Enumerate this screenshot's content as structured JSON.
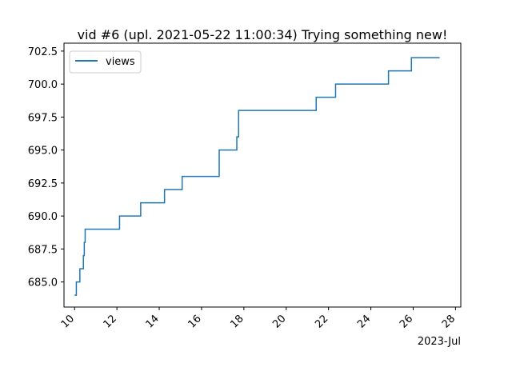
{
  "chart_data": {
    "type": "line",
    "title": "vid #6 (upl. 2021-05-22 11:00:34) Trying something new!",
    "xlabel": "",
    "ylabel": "",
    "x_offset_label": "2023-Jul",
    "x_ticks": [
      {
        "value": "2023-07-10",
        "label": "10"
      },
      {
        "value": "2023-07-12",
        "label": "12"
      },
      {
        "value": "2023-07-14",
        "label": "14"
      },
      {
        "value": "2023-07-16",
        "label": "16"
      },
      {
        "value": "2023-07-18",
        "label": "18"
      },
      {
        "value": "2023-07-20",
        "label": "20"
      },
      {
        "value": "2023-07-22",
        "label": "22"
      },
      {
        "value": "2023-07-24",
        "label": "24"
      },
      {
        "value": "2023-07-26",
        "label": "26"
      },
      {
        "value": "2023-07-28",
        "label": "28"
      }
    ],
    "y_ticks": [
      685.0,
      687.5,
      690.0,
      692.5,
      695.0,
      697.5,
      700.0,
      702.5
    ],
    "y_tick_labels": [
      "685.0",
      "687.5",
      "690.0",
      "692.5",
      "695.0",
      "697.5",
      "700.0",
      "702.5"
    ],
    "xlim": [
      "2023-07-09T12:00",
      "2023-07-28T06:00"
    ],
    "ylim": [
      683.1,
      703.1
    ],
    "grid": false,
    "legend": {
      "position": "top-left",
      "entries": [
        "views"
      ]
    },
    "series": [
      {
        "name": "views",
        "color": "#1f77b4",
        "step": "post",
        "x": [
          "2023-07-10T00:00",
          "2023-07-10T02:00",
          "2023-07-10T06:00",
          "2023-07-10T10:00",
          "2023-07-10T11:00",
          "2023-07-10T12:00",
          "2023-07-10T13:00",
          "2023-07-10T17:00",
          "2023-07-12T03:00",
          "2023-07-13T03:00",
          "2023-07-14T06:00",
          "2023-07-15T02:00",
          "2023-07-16T03:00",
          "2023-07-16T20:00",
          "2023-07-17T16:00",
          "2023-07-17T18:00",
          "2023-07-21T10:00",
          "2023-07-22T08:00",
          "2023-07-24T20:00",
          "2023-07-25T22:00",
          "2023-07-27T06:00"
        ],
        "y": [
          684,
          685,
          686,
          687,
          688,
          689,
          689,
          689,
          690,
          691,
          692,
          693,
          693,
          695,
          696,
          698,
          699,
          700,
          701,
          702,
          702
        ],
        "segments": [
          "step",
          "step",
          "step",
          "step",
          "step",
          "step",
          "step",
          "line",
          "step",
          "step",
          "step",
          "step",
          "line",
          "step",
          "step",
          "step",
          "step",
          "step",
          "step",
          "step",
          "step"
        ]
      }
    ]
  }
}
